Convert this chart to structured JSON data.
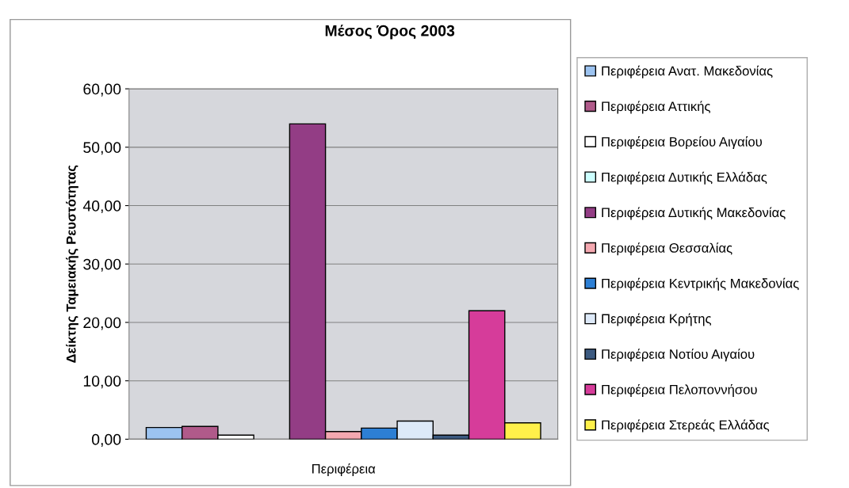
{
  "chart_data": {
    "type": "bar",
    "title": "Μέσος Όρος 2003",
    "ylabel": "Δείκτης Ταμειακής Ρευστότητας",
    "categories": [
      "Περιφέρεια"
    ],
    "series": [
      {
        "name": "Περιφέρεια Ανατ. Μακεδονίας",
        "color": "#9cc3f0",
        "values": [
          2.0
        ]
      },
      {
        "name": "Περιφέρεια Αττικής",
        "color": "#b05a8a",
        "values": [
          2.2
        ]
      },
      {
        "name": "Περιφέρεια Βορείου Αιγαίου",
        "color": "#ffffff",
        "values": [
          0.7
        ]
      },
      {
        "name": "Περιφέρεια Δυτικής Ελλάδας",
        "color": "#ccffff",
        "values": [
          null
        ]
      },
      {
        "name": "Περιφέρεια Δυτικής Μακεδονίας",
        "color": "#933d85",
        "values": [
          54.0
        ]
      },
      {
        "name": "Περιφέρεια Θεσσαλίας",
        "color": "#f4a8b0",
        "values": [
          1.3
        ]
      },
      {
        "name": "Περιφέρεια Κεντρικής Μακεδονίας",
        "color": "#2d7fd4",
        "values": [
          1.9
        ]
      },
      {
        "name": "Περιφέρεια Κρήτης",
        "color": "#dde9f8",
        "values": [
          3.1
        ]
      },
      {
        "name": "Περιφέρεια Νοτίου Αιγαίου",
        "color": "#3c5a80",
        "values": [
          0.7
        ]
      },
      {
        "name": "Περιφέρεια Πελοποννήσου",
        "color": "#d63c9a",
        "values": [
          22.0
        ]
      },
      {
        "name": "Περιφέρεια Στερεάς Ελλάδας",
        "color": "#fff04a",
        "values": [
          2.8
        ]
      }
    ],
    "ylim": [
      0,
      60
    ],
    "yticks": [
      {
        "value": 0,
        "label": "0,00"
      },
      {
        "value": 10,
        "label": "10,00"
      },
      {
        "value": 20,
        "label": "20,00"
      },
      {
        "value": 30,
        "label": "30,00"
      },
      {
        "value": 40,
        "label": "40,00"
      },
      {
        "value": 50,
        "label": "50,00"
      },
      {
        "value": 60,
        "label": "60,00"
      }
    ],
    "grid": "y",
    "legend": "right"
  }
}
